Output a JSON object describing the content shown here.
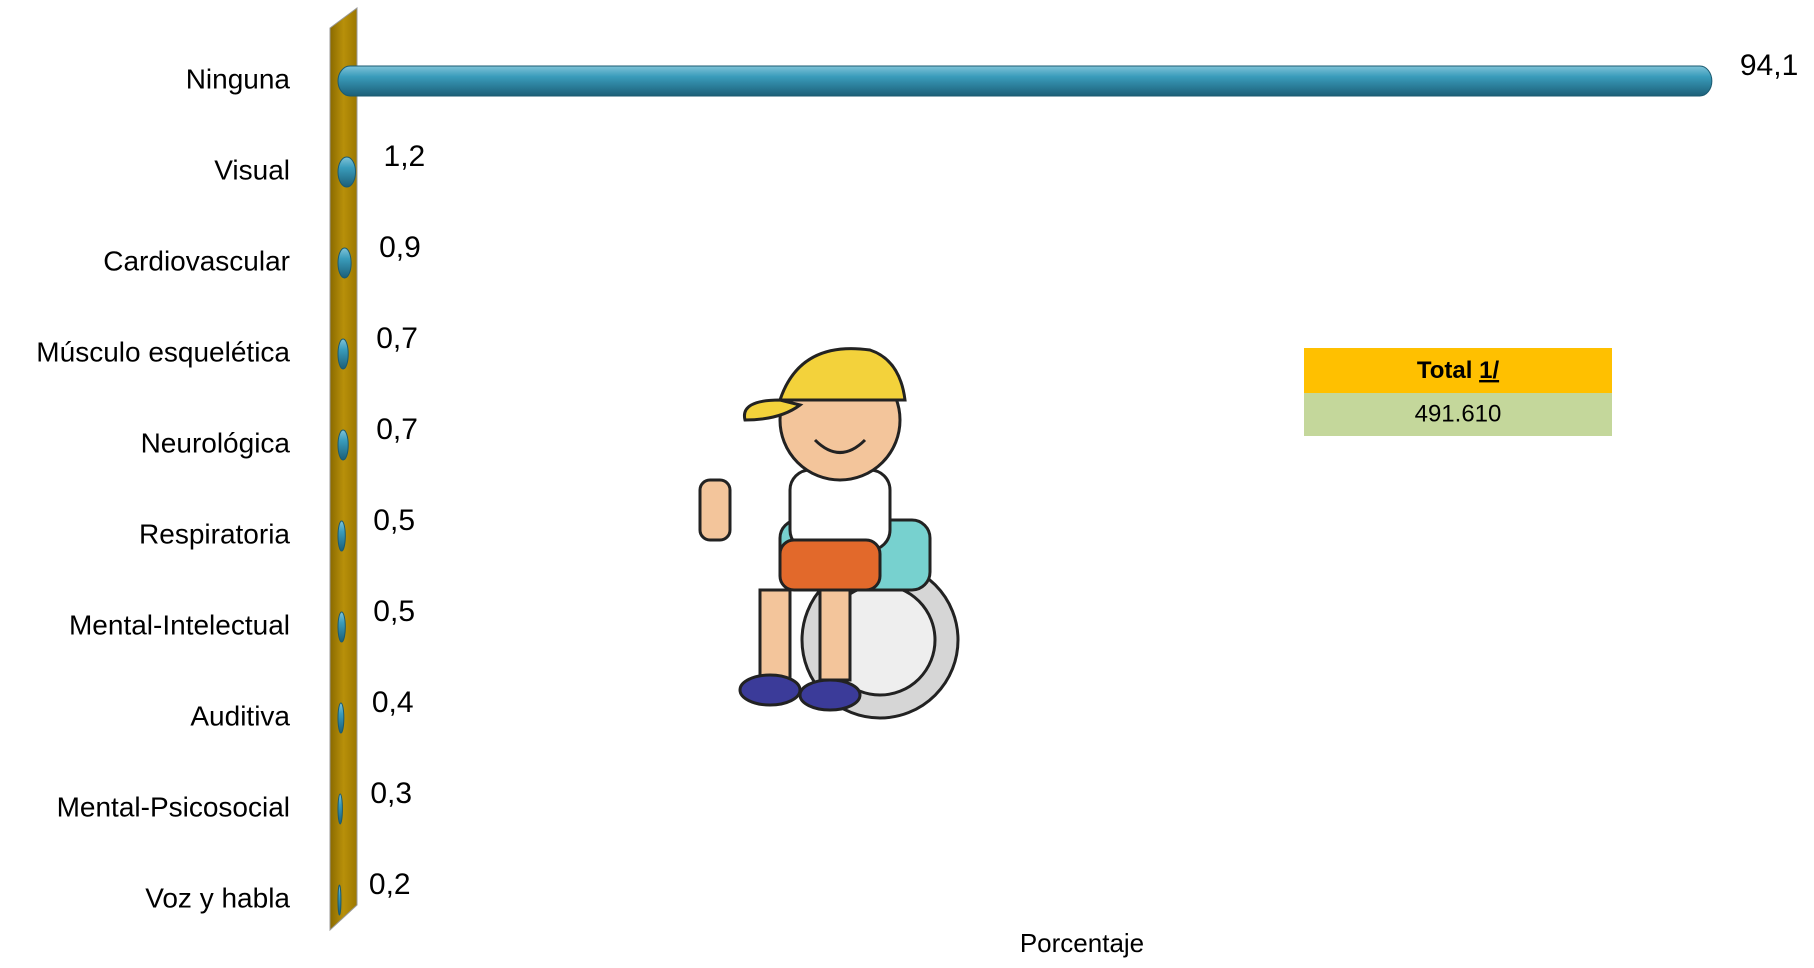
{
  "chart_data": {
    "type": "bar",
    "orientation": "horizontal",
    "categories": [
      "Ninguna",
      "Visual",
      "Cardiovascular",
      "Músculo esquelética",
      "Neurológica",
      "Respiratoria",
      "Mental-Intelectual",
      "Auditiva",
      "Mental-Psicosocial",
      "Voz y habla"
    ],
    "values": [
      94.1,
      1.2,
      0.9,
      0.7,
      0.7,
      0.5,
      0.5,
      0.4,
      0.3,
      0.2
    ],
    "value_labels": [
      "94,1",
      "1,2",
      "0,9",
      "0,7",
      "0,7",
      "0,5",
      "0,5",
      "0,4",
      "0,3",
      "0,2"
    ],
    "color": "#2f8fae",
    "xlim": [
      0,
      100
    ],
    "xlabel": "Porcentaje",
    "total_box": {
      "title": "Total",
      "note": "1/",
      "value": "491.610"
    }
  }
}
